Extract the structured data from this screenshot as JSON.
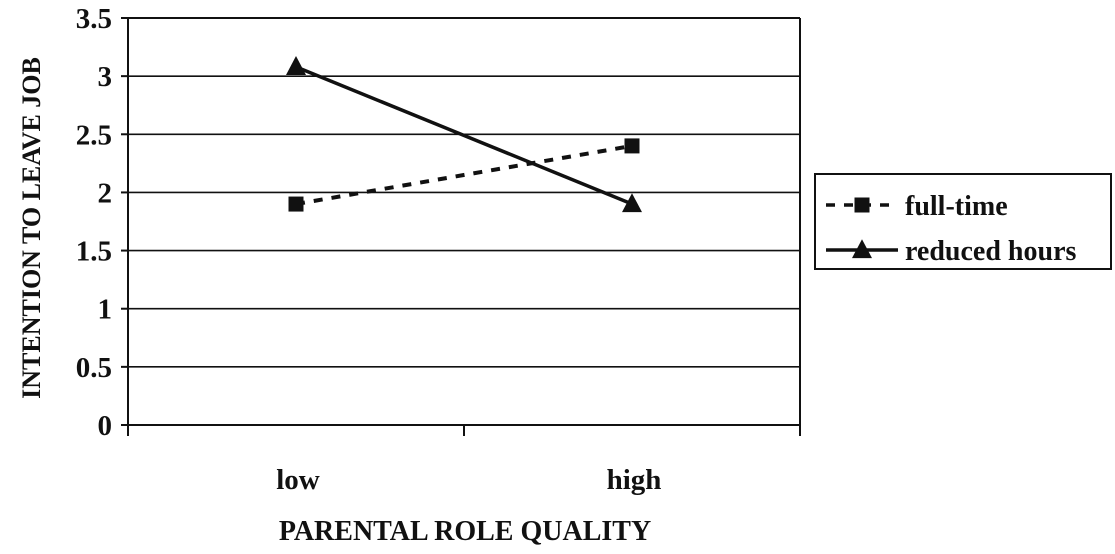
{
  "chart_data": {
    "type": "line",
    "title": "",
    "xlabel": "PARENTAL ROLE QUALITY",
    "ylabel": "INTENTION TO LEAVE JOB",
    "categories": [
      "low",
      "high"
    ],
    "ylim": [
      0,
      3.5
    ],
    "yticks": [
      0,
      0.5,
      1,
      1.5,
      2,
      2.5,
      3,
      3.5
    ],
    "ytick_labels": [
      "0",
      "0.5",
      "1",
      "1.5",
      "2",
      "2.5",
      "3",
      "3.5"
    ],
    "grid": true,
    "legend_position": "right",
    "series": [
      {
        "name": "full-time",
        "values": [
          1.9,
          2.4
        ],
        "line_style": "dashed",
        "marker": "square",
        "color": "#111111"
      },
      {
        "name": "reduced hours",
        "values": [
          3.08,
          1.9
        ],
        "line_style": "solid",
        "marker": "triangle",
        "color": "#111111"
      }
    ]
  }
}
